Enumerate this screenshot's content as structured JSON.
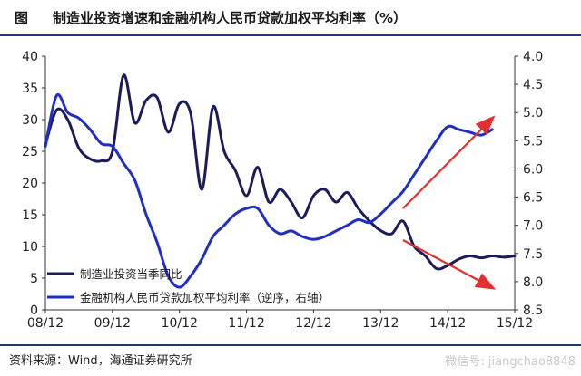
{
  "header": {
    "figure_label": "图",
    "title": "制造业投资增速和金融机构人民币贷款加权平均利率（%）"
  },
  "footer": {
    "source": "资料来源：Wind，海通证券研究所",
    "watermark": "微信号: jiangchao8848"
  },
  "colors": {
    "series_dark": "#1c1c5c",
    "series_blue": "#1f2ec4",
    "arrow": "#e03030",
    "rule": "#1f3a6e"
  },
  "chart_data": {
    "type": "line",
    "x_ticks": [
      "08/12",
      "09/12",
      "10/12",
      "11/12",
      "12/12",
      "13/12",
      "14/12",
      "15/12"
    ],
    "left_axis": {
      "ylim": [
        0,
        40
      ],
      "ticks": [
        "0",
        "5",
        "10",
        "15",
        "20",
        "25",
        "30",
        "35",
        "40"
      ]
    },
    "right_axis": {
      "ylim": [
        4.0,
        8.5
      ],
      "inverted": true,
      "ticks": [
        "4.0",
        "4.5",
        "5.0",
        "5.5",
        "6.0",
        "6.5",
        "7.0",
        "7.5",
        "8.0",
        "8.5"
      ]
    },
    "series": [
      {
        "name": "制造业投资当季同比",
        "axis": "left",
        "x": [
          2008.917,
          2009.083,
          2009.25,
          2009.417,
          2009.583,
          2009.75,
          2009.917,
          2010.083,
          2010.25,
          2010.417,
          2010.583,
          2010.75,
          2010.917,
          2011.083,
          2011.25,
          2011.417,
          2011.583,
          2011.75,
          2011.917,
          2012.083,
          2012.25,
          2012.417,
          2012.583,
          2012.75,
          2012.917,
          2013.083,
          2013.25,
          2013.417,
          2013.583,
          2013.75,
          2013.917,
          2014.083,
          2014.25,
          2014.417,
          2014.583,
          2014.75,
          2014.917,
          2015.083,
          2015.25,
          2015.417,
          2015.583,
          2015.75,
          2015.917
        ],
        "values": [
          26,
          31.5,
          30,
          25.5,
          23.8,
          23.5,
          25,
          37,
          29.5,
          33,
          33.5,
          28,
          32.5,
          31,
          19,
          32,
          25,
          22,
          18,
          22.5,
          17,
          19,
          17,
          14.5,
          18,
          19,
          17,
          18.5,
          16,
          14,
          12.5,
          12,
          14,
          10,
          8.5,
          6.5,
          7,
          8,
          8.5,
          8.2,
          8.5,
          8.3,
          8.5
        ]
      },
      {
        "name": "金融机构人民币贷款加权平均利率（逆序，右轴）",
        "axis": "right",
        "x": [
          2008.917,
          2009.083,
          2009.25,
          2009.417,
          2009.583,
          2009.75,
          2009.917,
          2010.083,
          2010.25,
          2010.417,
          2010.583,
          2010.75,
          2010.917,
          2011.083,
          2011.25,
          2011.417,
          2011.583,
          2011.75,
          2011.917,
          2012.083,
          2012.25,
          2012.417,
          2012.583,
          2012.75,
          2012.917,
          2013.083,
          2013.25,
          2013.417,
          2013.583,
          2013.75,
          2013.917,
          2014.083,
          2014.25,
          2014.417,
          2014.583,
          2014.75,
          2014.917,
          2015.083,
          2015.25,
          2015.417,
          2015.583
        ],
        "values": [
          5.6,
          4.7,
          5.0,
          5.1,
          5.3,
          5.55,
          5.6,
          5.9,
          6.2,
          6.8,
          7.3,
          7.9,
          8.1,
          7.9,
          7.6,
          7.2,
          7.0,
          6.8,
          6.7,
          6.7,
          7.0,
          7.15,
          7.1,
          7.2,
          7.25,
          7.2,
          7.1,
          7.0,
          6.9,
          6.95,
          6.8,
          6.6,
          6.4,
          6.1,
          5.8,
          5.5,
          5.25,
          5.3,
          5.35,
          5.4,
          5.3
        ]
      }
    ],
    "legend": [
      "制造业投资当季同比",
      "金融机构人民币贷款加权平均利率（逆序，右轴）"
    ],
    "legend_position": "bottom-left",
    "annotations": [
      {
        "type": "arrow",
        "direction": "up-right",
        "from": [
          2014.25,
          6.7
        ],
        "to": [
          2015.583,
          5.1
        ],
        "axis": "right"
      },
      {
        "type": "arrow",
        "direction": "down-right",
        "from": [
          2014.25,
          11
        ],
        "to": [
          2015.583,
          3.5
        ],
        "axis": "left"
      }
    ],
    "grid": false
  }
}
